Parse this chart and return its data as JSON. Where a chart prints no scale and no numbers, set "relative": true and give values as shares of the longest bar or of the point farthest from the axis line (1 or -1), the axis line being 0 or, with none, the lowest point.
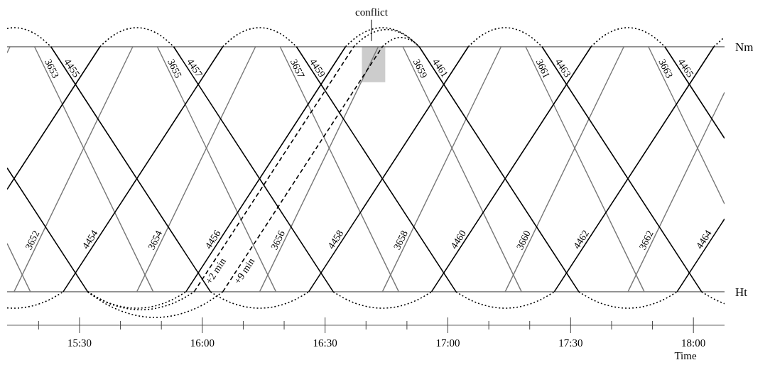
{
  "chart_data": {
    "type": "line",
    "xlabel": "Time",
    "relative": true,
    "xlim": [
      15.205,
      18.1267
    ],
    "xticks": [
      {
        "value": 15.3333,
        "label": null
      },
      {
        "value": 15.5,
        "label": "15:30"
      },
      {
        "value": 15.6667,
        "label": null
      },
      {
        "value": 15.8333,
        "label": null
      },
      {
        "value": 16,
        "label": "16:00"
      },
      {
        "value": 16.1667,
        "label": null
      },
      {
        "value": 16.3333,
        "label": null
      },
      {
        "value": 16.5,
        "label": "16:30"
      },
      {
        "value": 16.6667,
        "label": null
      },
      {
        "value": 16.8333,
        "label": null
      },
      {
        "value": 17,
        "label": "17:00"
      },
      {
        "value": 17.1667,
        "label": null
      },
      {
        "value": 17.3333,
        "label": null
      },
      {
        "value": 17.5,
        "label": "17:30"
      },
      {
        "value": 17.6667,
        "label": null
      },
      {
        "value": 17.8333,
        "label": null
      },
      {
        "value": 18,
        "label": "18:00"
      }
    ],
    "ref_lines": [
      {
        "axis": "y",
        "value": 0.928,
        "label": "Nm",
        "color": "#666666"
      },
      {
        "axis": "y",
        "value": 0,
        "label": "Ht",
        "color": "#666666"
      }
    ],
    "bands": [
      {
        "axis": "x",
        "from": 16.65,
        "to": 16.745,
        "label": "conflict",
        "color": "#cccccc"
      }
    ],
    "series": [
      {
        "color": "#777777",
        "x": [
          15.205,
          15.2167
        ],
        "values": [
          0.905,
          0.928
        ]
      },
      {
        "name": "3652",
        "color": "#777777",
        "x": [
          15.2333,
          15.7167
        ],
        "values": [
          0,
          0.928
        ]
      },
      {
        "name": "3654",
        "color": "#777777",
        "x": [
          15.7333,
          16.2167
        ],
        "values": [
          0,
          0.928
        ]
      },
      {
        "name": "3656",
        "color": "#777777",
        "x": [
          16.2333,
          16.7167
        ],
        "values": [
          0,
          0.928
        ]
      },
      {
        "name": "3658",
        "color": "#777777",
        "x": [
          16.7333,
          17.2167
        ],
        "values": [
          0,
          0.928
        ]
      },
      {
        "name": "3660",
        "color": "#777777",
        "x": [
          17.2333,
          17.7167
        ],
        "values": [
          0,
          0.928
        ]
      },
      {
        "name": "3662",
        "color": "#777777",
        "x": [
          17.7333,
          18.1267
        ],
        "values": [
          0,
          0.755
        ]
      },
      {
        "color": "#777777",
        "x": [
          15.205,
          15.3
        ],
        "values": [
          0.183,
          0
        ]
      },
      {
        "name": "3653",
        "color": "#777777",
        "x": [
          15.3167,
          15.8
        ],
        "values": [
          0.928,
          0
        ]
      },
      {
        "name": "3655",
        "color": "#777777",
        "x": [
          15.8167,
          16.3
        ],
        "values": [
          0.928,
          0
        ]
      },
      {
        "name": "3657",
        "color": "#777777",
        "x": [
          16.3167,
          16.8
        ],
        "values": [
          0.928,
          0
        ]
      },
      {
        "name": "3659",
        "color": "#777777",
        "x": [
          16.8167,
          17.3
        ],
        "values": [
          0.928,
          0
        ]
      },
      {
        "name": "3661",
        "color": "#777777",
        "x": [
          17.3167,
          17.8
        ],
        "values": [
          0.928,
          0
        ]
      },
      {
        "name": "3663",
        "color": "#777777",
        "x": [
          17.8167,
          18.1267
        ],
        "values": [
          0.928,
          0.333
        ]
      },
      {
        "color": "#000000",
        "x": [
          15.205,
          15.5833
        ],
        "values": [
          0.388,
          0.928
        ]
      },
      {
        "name": "4454",
        "color": "#000000",
        "x": [
          15.4333,
          16.0833
        ],
        "values": [
          0,
          0.928
        ]
      },
      {
        "name": "4456",
        "color": "#000000",
        "x": [
          15.9333,
          16.5833
        ],
        "values": [
          0,
          0.928
        ]
      },
      {
        "name": "4458",
        "color": "#000000",
        "x": [
          16.4333,
          17.0833
        ],
        "values": [
          0,
          0.928
        ]
      },
      {
        "name": "4460",
        "color": "#000000",
        "x": [
          16.9333,
          17.5833
        ],
        "values": [
          0,
          0.928
        ]
      },
      {
        "name": "4462",
        "color": "#000000",
        "x": [
          17.4333,
          18.0833
        ],
        "values": [
          0,
          0.928
        ]
      },
      {
        "name": "4464",
        "color": "#000000",
        "x": [
          17.9333,
          18.1267
        ],
        "values": [
          0,
          0.276
        ]
      },
      {
        "color": "#000000",
        "x": [
          15.205,
          15.5333
        ],
        "values": [
          0.469,
          0
        ]
      },
      {
        "name": "4455",
        "color": "#000000",
        "x": [
          15.3833,
          16.0333
        ],
        "values": [
          0.928,
          0
        ]
      },
      {
        "name": "4457",
        "color": "#000000",
        "x": [
          15.8833,
          16.5333
        ],
        "values": [
          0.928,
          0
        ]
      },
      {
        "name": "4459",
        "color": "#000000",
        "x": [
          16.3833,
          17.0333
        ],
        "values": [
          0.928,
          0
        ]
      },
      {
        "name": "4461",
        "color": "#000000",
        "x": [
          16.8833,
          17.5333
        ],
        "values": [
          0.928,
          0
        ]
      },
      {
        "name": "4463",
        "color": "#000000",
        "x": [
          17.3833,
          18.0333
        ],
        "values": [
          0.928,
          0
        ]
      },
      {
        "name": "4465",
        "color": "#000000",
        "x": [
          17.8833,
          18.1267
        ],
        "values": [
          0.928,
          0.581
        ]
      },
      {
        "name": "+2 min",
        "color": "#000000",
        "line_style": "dashed",
        "x": [
          15.9667,
          16.6167
        ],
        "values": [
          0,
          0.928
        ]
      },
      {
        "name": "+9 min",
        "color": "#000000",
        "line_style": "dashed",
        "x": [
          16.0833,
          16.7333
        ],
        "values": [
          0,
          0.928
        ]
      },
      {
        "color": "#000000",
        "line_style": "dotted",
        "x": [
          15.205,
          15.2333,
          15.3395,
          15.3833
        ],
        "values": [
          0.997,
          1,
          0.964,
          0.928
        ]
      },
      {
        "color": "#000000",
        "line_style": "dotted",
        "x": [
          15.5833,
          15.6271,
          15.7333,
          15.8395,
          15.8833
        ],
        "values": [
          0.928,
          0.964,
          1,
          0.964,
          0.928
        ]
      },
      {
        "color": "#000000",
        "line_style": "dotted",
        "x": [
          16.0833,
          16.1271,
          16.2333,
          16.3395,
          16.3833
        ],
        "values": [
          0.928,
          0.964,
          1,
          0.964,
          0.928
        ]
      },
      {
        "color": "#000000",
        "line_style": "dotted",
        "x": [
          16.5833,
          16.6271,
          16.7333,
          16.8395,
          16.8833
        ],
        "values": [
          0.928,
          0.964,
          1,
          0.964,
          0.928
        ]
      },
      {
        "color": "#000000",
        "line_style": "dotted",
        "x": [
          17.0833,
          17.1271,
          17.2333,
          17.3395,
          17.3833
        ],
        "values": [
          0.928,
          0.964,
          1,
          0.964,
          0.928
        ]
      },
      {
        "color": "#000000",
        "line_style": "dotted",
        "x": [
          17.5833,
          17.6271,
          17.7333,
          17.8395,
          17.8833
        ],
        "values": [
          0.928,
          0.964,
          1,
          0.964,
          0.928
        ]
      },
      {
        "color": "#000000",
        "line_style": "dotted",
        "x": [
          18.0833,
          18.12
        ],
        "values": [
          0.928,
          0.959
        ]
      },
      {
        "color": "#000000",
        "line_style": "dotted",
        "x": [
          16.6167,
          16.6557,
          16.75,
          16.8443,
          16.8833
        ],
        "values": [
          0.928,
          0.96,
          0.993,
          0.96,
          0.928
        ]
      },
      {
        "color": "#000000",
        "line_style": "dotted",
        "x": [
          16.7333,
          16.7552,
          16.8083,
          16.8614,
          16.8833
        ],
        "values": [
          0.928,
          0.945,
          0.963,
          0.945,
          0.928
        ]
      },
      {
        "color": "#000000",
        "line_style": "dotted",
        "x": [
          15.205,
          15.2333,
          15.3749,
          15.4333
        ],
        "values": [
          -0.061,
          -0.062,
          -0.031,
          0
        ]
      },
      {
        "color": "#000000",
        "line_style": "dotted",
        "x": [
          15.5333,
          15.5917,
          15.7333,
          15.8749,
          15.9333
        ],
        "values": [
          0,
          -0.031,
          -0.062,
          -0.031,
          0
        ]
      },
      {
        "color": "#000000",
        "line_style": "dotted",
        "x": [
          16.0333,
          16.0917,
          16.2333,
          16.3749,
          16.4333
        ],
        "values": [
          0,
          -0.031,
          -0.062,
          -0.031,
          0
        ]
      },
      {
        "color": "#000000",
        "line_style": "dotted",
        "x": [
          16.5333,
          16.5917,
          16.7333,
          16.8749,
          16.9333
        ],
        "values": [
          0,
          -0.031,
          -0.062,
          -0.031,
          0
        ]
      },
      {
        "color": "#000000",
        "line_style": "dotted",
        "x": [
          17.0333,
          17.0917,
          17.2333,
          17.3749,
          17.4333
        ],
        "values": [
          0,
          -0.031,
          -0.062,
          -0.031,
          0
        ]
      },
      {
        "color": "#000000",
        "line_style": "dotted",
        "x": [
          17.5333,
          17.5917,
          17.7333,
          17.8749,
          17.9333
        ],
        "values": [
          0,
          -0.031,
          -0.062,
          -0.031,
          0
        ]
      },
      {
        "color": "#000000",
        "line_style": "dotted",
        "x": [
          18.0333,
          18.0917,
          18.1267
        ],
        "values": [
          0,
          -0.031,
          -0.045
        ]
      },
      {
        "color": "#000000",
        "line_style": "dotted",
        "x": [
          15.5333,
          15.5966,
          15.75,
          15.9034,
          15.9667
        ],
        "values": [
          0,
          -0.034,
          -0.068,
          -0.034,
          0
        ]
      },
      {
        "color": "#000000",
        "line_style": "dotted",
        "x": [
          15.5333,
          15.6136,
          15.8083,
          16.003,
          16.0833
        ],
        "values": [
          0,
          -0.049,
          -0.097,
          -0.049,
          0
        ]
      }
    ]
  }
}
